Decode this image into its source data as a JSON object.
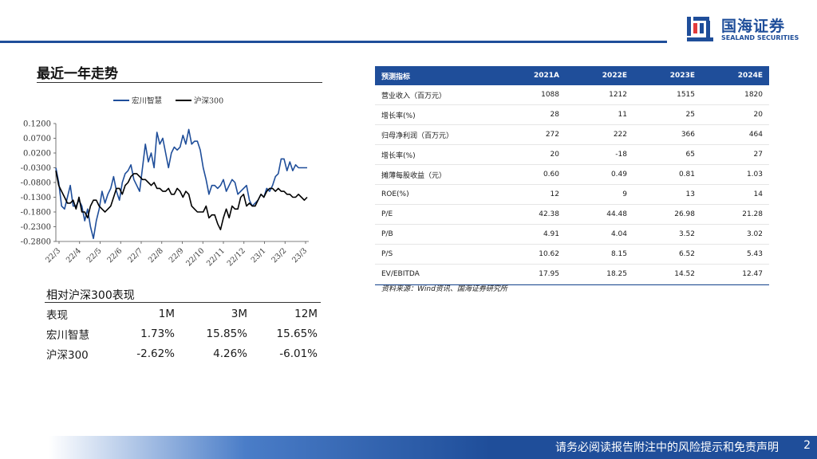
{
  "brand": {
    "name_cn": "国海证券",
    "name_en": "SEALAND SECURITIES",
    "colors": {
      "primary": "#1f4e9a",
      "series_a": "#1f4e9a",
      "series_b": "#000000"
    }
  },
  "section": {
    "trend_title": "最近一年走势"
  },
  "chart_data": {
    "type": "line",
    "title": "",
    "xlabel": "",
    "ylabel": "",
    "x_ticks": [
      "22/3",
      "22/4",
      "22/5",
      "22/6",
      "22/7",
      "22/8",
      "22/9",
      "22/10",
      "22/11",
      "22/12",
      "23/1",
      "23/2",
      "23/3"
    ],
    "y_ticks": [
      "0.1200",
      "0.0700",
      "0.0200",
      "-0.0300",
      "-0.0800",
      "-0.1300",
      "-0.1800",
      "-0.2300",
      "-0.2800"
    ],
    "ylim": [
      -0.28,
      0.12
    ],
    "grid": false,
    "legend": "top",
    "series": [
      {
        "name": "宏川智慧",
        "values": [
          -0.03,
          -0.08,
          -0.16,
          -0.17,
          -0.13,
          -0.09,
          -0.16,
          -0.16,
          -0.14,
          -0.16,
          -0.21,
          -0.17,
          -0.23,
          -0.27,
          -0.21,
          -0.17,
          -0.11,
          -0.15,
          -0.12,
          -0.1,
          -0.06,
          -0.11,
          -0.14,
          -0.08,
          -0.05,
          -0.04,
          -0.02,
          -0.07,
          -0.09,
          -0.11,
          -0.03,
          0.05,
          -0.01,
          0.02,
          -0.03,
          0.09,
          0.05,
          0.07,
          0.02,
          -0.03,
          0.02,
          0.04,
          0.03,
          0.04,
          0.08,
          0.05,
          0.1,
          0.05,
          0.06,
          0.06,
          0.03,
          -0.03,
          -0.07,
          -0.12,
          -0.09,
          -0.09,
          -0.1,
          -0.09,
          -0.07,
          -0.11,
          -0.09,
          -0.07,
          -0.08,
          -0.12,
          -0.11,
          -0.1,
          -0.09,
          -0.14,
          -0.16,
          -0.15,
          -0.14,
          -0.12,
          -0.13,
          -0.1,
          -0.11,
          -0.09,
          -0.06,
          -0.05,
          0.0,
          0.0,
          -0.04,
          -0.01,
          -0.04,
          -0.02,
          -0.03,
          -0.03,
          -0.03,
          -0.03
        ]
      },
      {
        "name": "沪深300",
        "values": [
          -0.04,
          -0.09,
          -0.11,
          -0.13,
          -0.15,
          -0.15,
          -0.14,
          -0.17,
          -0.13,
          -0.18,
          -0.18,
          -0.2,
          -0.16,
          -0.14,
          -0.14,
          -0.16,
          -0.17,
          -0.18,
          -0.17,
          -0.16,
          -0.13,
          -0.1,
          -0.1,
          -0.12,
          -0.09,
          -0.08,
          -0.06,
          -0.05,
          -0.05,
          -0.06,
          -0.07,
          -0.07,
          -0.08,
          -0.09,
          -0.08,
          -0.1,
          -0.1,
          -0.11,
          -0.11,
          -0.1,
          -0.12,
          -0.12,
          -0.1,
          -0.11,
          -0.13,
          -0.11,
          -0.12,
          -0.16,
          -0.17,
          -0.18,
          -0.18,
          -0.18,
          -0.16,
          -0.2,
          -0.19,
          -0.19,
          -0.22,
          -0.24,
          -0.2,
          -0.17,
          -0.2,
          -0.16,
          -0.17,
          -0.17,
          -0.13,
          -0.12,
          -0.16,
          -0.15,
          -0.16,
          -0.16,
          -0.14,
          -0.12,
          -0.13,
          -0.11,
          -0.1,
          -0.1,
          -0.11,
          -0.1,
          -0.11,
          -0.11,
          -0.12,
          -0.12,
          -0.13,
          -0.13,
          -0.12,
          -0.13,
          -0.14,
          -0.13
        ]
      }
    ]
  },
  "performance": {
    "title": "相对沪深300表现",
    "headers": [
      "表现",
      "1M",
      "3M",
      "12M"
    ],
    "rows": [
      [
        "宏川智慧",
        "1.73%",
        "15.85%",
        "15.65%"
      ],
      [
        "沪深300",
        "-2.62%",
        "4.26%",
        "-6.01%"
      ]
    ]
  },
  "forecast": {
    "headers": [
      "预测指标",
      "2021A",
      "2022E",
      "2023E",
      "2024E"
    ],
    "rows": [
      [
        "营业收入（百万元）",
        "1088",
        "1212",
        "1515",
        "1820"
      ],
      [
        "增长率(%)",
        "28",
        "11",
        "25",
        "20"
      ],
      [
        "归母净利润（百万元）",
        "272",
        "222",
        "366",
        "464"
      ],
      [
        "增长率(%)",
        "20",
        "-18",
        "65",
        "27"
      ],
      [
        "摊薄每股收益（元）",
        "0.60",
        "0.49",
        "0.81",
        "1.03"
      ],
      [
        "ROE(%)",
        "12",
        "9",
        "13",
        "14"
      ],
      [
        "P/E",
        "42.38",
        "44.48",
        "26.98",
        "21.28"
      ],
      [
        "P/B",
        "4.91",
        "4.04",
        "3.52",
        "3.02"
      ],
      [
        "P/S",
        "10.62",
        "8.15",
        "6.52",
        "5.43"
      ],
      [
        "EV/EBITDA",
        "17.95",
        "18.25",
        "14.52",
        "12.47"
      ]
    ],
    "source": "资料来源：Wind资讯、国海证券研究所"
  },
  "footer": {
    "disclaimer": "请务必阅读报告附注中的风险提示和免责声明",
    "page": "2"
  }
}
